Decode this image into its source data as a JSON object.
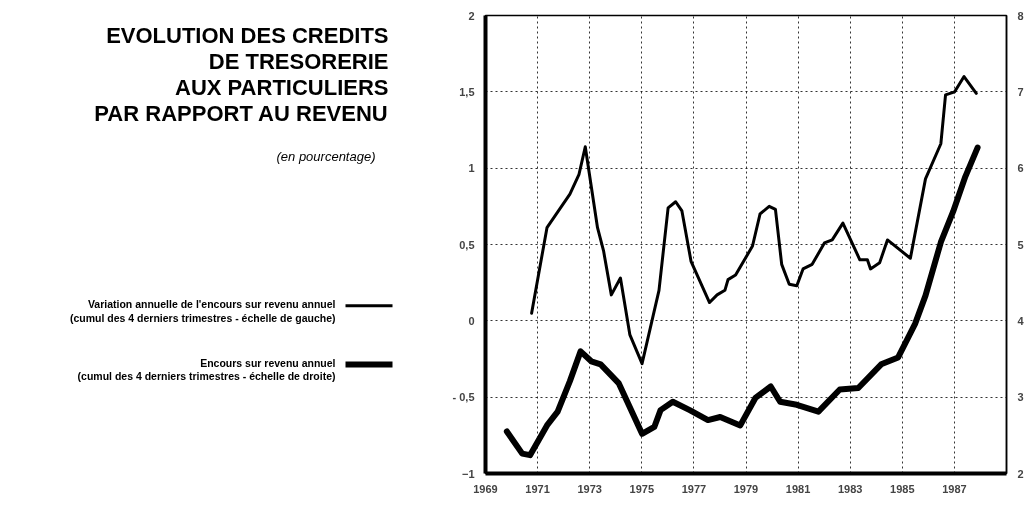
{
  "chart_data": {
    "type": "line",
    "title": "EVOLUTION DES CREDITS\nDE TRESORERIE\nAUX PARTICULIERS\nPAR RAPPORT AU REVENU",
    "subtitle": "(en pourcentage)",
    "xlim": [
      1969,
      1989
    ],
    "xticks": [
      1969,
      1971,
      1973,
      1975,
      1977,
      1979,
      1981,
      1983,
      1985,
      1987
    ],
    "ylim": [
      -1,
      2
    ],
    "yticks": [
      2,
      {
        "value": 1.5,
        "label": "1,5"
      },
      1,
      {
        "value": 0.5,
        "label": "0,5"
      },
      0,
      {
        "value": -0.5,
        "label": "- 0,5"
      },
      -1
    ],
    "y2lim": [
      2,
      8
    ],
    "y2ticks": [
      2,
      3,
      4,
      5,
      6,
      7,
      8
    ],
    "grid": true,
    "legend": "left",
    "marker": "none",
    "line_style": "solid",
    "series": [
      {
        "name": "Variation annuelle de l'encours sur revenu annuel\n(cumul des 4 derniers trimestres - échelle de gauche)",
        "color": "#000000",
        "x": [
          1970.77,
          1971.36,
          1972.24,
          1972.59,
          1972.83,
          1973.3,
          1973.53,
          1973.83,
          1974.18,
          1974.54,
          1975.01,
          1975.66,
          1976.01,
          1976.3,
          1976.54,
          1976.89,
          1977.6,
          1977.89,
          1978.19,
          1978.31,
          1978.6,
          1979.25,
          1979.54,
          1979.89,
          1980.13,
          1980.37,
          1980.66,
          1980.95,
          1981.19,
          1981.54,
          1982.01,
          1982.31,
          1982.72,
          1983.37,
          1983.66,
          1983.78,
          1984.13,
          1984.43,
          1985.31,
          1985.89,
          1986.48,
          1986.66,
          1987.01,
          1987.37,
          1987.84
        ],
        "values": [
          0.05,
          0.61,
          0.83,
          0.96,
          1.14,
          0.61,
          0.46,
          0.17,
          0.28,
          -0.09,
          -0.28,
          0.2,
          0.74,
          0.78,
          0.72,
          0.39,
          0.12,
          0.17,
          0.2,
          0.27,
          0.3,
          0.49,
          0.7,
          0.75,
          0.73,
          0.37,
          0.24,
          0.23,
          0.34,
          0.37,
          0.51,
          0.53,
          0.64,
          0.4,
          0.4,
          0.34,
          0.38,
          0.53,
          0.41,
          0.93,
          1.16,
          1.48,
          1.5,
          1.6,
          1.49
        ]
      },
      {
        "name": "Encours sur revenu annuel\n(cumul des 4 derniers trimestres - échelle de droite)",
        "color": "#000000",
        "axis": "y2",
        "x": [
          1969.82,
          1970.41,
          1970.71,
          1971.36,
          1971.77,
          1972.24,
          1972.65,
          1973.06,
          1973.42,
          1974.12,
          1975.01,
          1975.48,
          1975.72,
          1976.19,
          1976.84,
          1977.54,
          1978.01,
          1978.78,
          1979.36,
          1979.95,
          1980.31,
          1980.95,
          1981.78,
          1982.6,
          1983.31,
          1984.19,
          1984.84,
          1985.49,
          1985.89,
          1986.48,
          1986.95,
          1987.42,
          1987.89
        ],
        "values": [
          2.55,
          2.26,
          2.24,
          2.63,
          2.81,
          3.21,
          3.6,
          3.47,
          3.43,
          3.18,
          2.52,
          2.61,
          2.83,
          2.94,
          2.83,
          2.7,
          2.74,
          2.63,
          2.99,
          3.14,
          2.94,
          2.9,
          2.81,
          3.1,
          3.12,
          3.43,
          3.52,
          3.96,
          4.33,
          5.03,
          5.43,
          5.89,
          6.27
        ]
      }
    ]
  }
}
